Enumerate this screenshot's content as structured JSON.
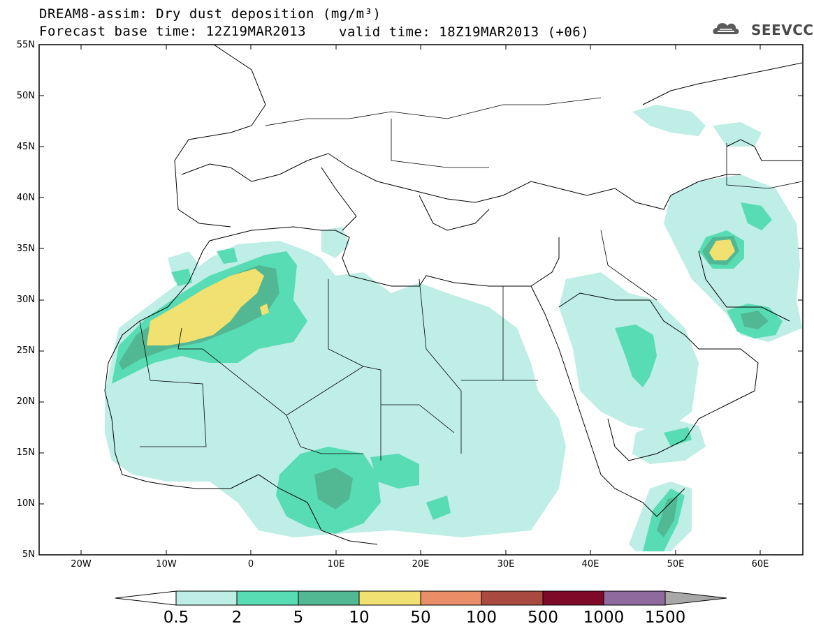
{
  "header": {
    "title": "DREAM8-assim: Dry dust deposition (mg/m³)",
    "forecast_base": "Forecast base time: 12Z19MAR2013",
    "valid_time": "valid time: 18Z19MAR2013 (+06)"
  },
  "logo": {
    "text": "SEEVCCC",
    "icon": "cloud-logo-icon"
  },
  "map": {
    "projection": "lat-lon",
    "lon_range": [
      -25,
      65
    ],
    "lat_range": [
      5,
      55
    ],
    "lat_ticks": [
      "55N",
      "50N",
      "45N",
      "40N",
      "35N",
      "30N",
      "25N",
      "20N",
      "15N",
      "10N",
      "5N"
    ],
    "lon_ticks": [
      "20W",
      "10W",
      "0",
      "10E",
      "20E",
      "30E",
      "40E",
      "50E",
      "60E"
    ],
    "shading": [
      {
        "level": "0.5-2",
        "description_region": "Sahara, Sahel, Arabia, Iran"
      },
      {
        "level": "2-5",
        "description_region": "Morocco/Algeria, Nigeria, Chad, Arabia, Iran, Somalia"
      },
      {
        "level": "5-10",
        "description_region": "W Sahara, Nigeria, Iran, Somalia"
      },
      {
        "level": "10-50",
        "description_region": "Morocco/Algeria border, central Iran"
      }
    ]
  },
  "colorbar": {
    "labels": [
      "0.5",
      "2",
      "5",
      "10",
      "50",
      "100",
      "500",
      "1000",
      "1500"
    ],
    "colors": [
      "#ffffff",
      "#bfeee6",
      "#58dcb4",
      "#52b893",
      "#f1e170",
      "#ea8e68",
      "#a84a3f",
      "#7e0a28",
      "#8e6a9e",
      "#a8a8a8"
    ]
  }
}
